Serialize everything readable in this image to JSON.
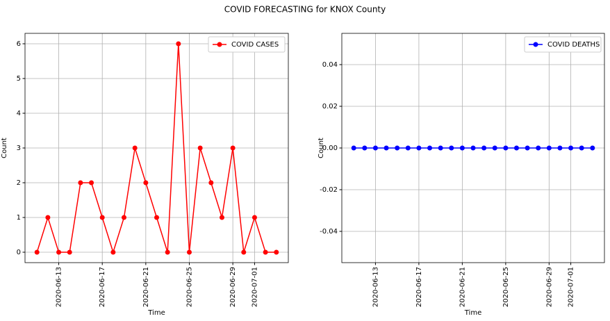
{
  "title": "COVID FORECASTING for KNOX County",
  "chart_data": [
    {
      "type": "line",
      "xlabel": "Time",
      "ylabel": "Count",
      "grid": true,
      "legend": "upper right",
      "x": [
        "2020-06-11",
        "2020-06-12",
        "2020-06-13",
        "2020-06-14",
        "2020-06-15",
        "2020-06-16",
        "2020-06-17",
        "2020-06-18",
        "2020-06-19",
        "2020-06-20",
        "2020-06-21",
        "2020-06-22",
        "2020-06-23",
        "2020-06-24",
        "2020-06-25",
        "2020-06-26",
        "2020-06-27",
        "2020-06-28",
        "2020-06-29",
        "2020-06-30",
        "2020-07-01",
        "2020-07-02",
        "2020-07-03"
      ],
      "series": [
        {
          "name": "COVID CASES",
          "color": "#ff0000",
          "values": [
            0,
            1,
            0,
            0,
            2,
            2,
            1,
            0,
            1,
            3,
            2,
            1,
            0,
            6,
            0,
            3,
            2,
            1,
            3,
            0,
            1,
            0,
            0
          ]
        }
      ],
      "xlim": [
        "2020-06-09T21:36:00Z",
        "2020-07-04T02:24:00Z"
      ],
      "xticks": [
        "2020-06-13",
        "2020-06-17",
        "2020-06-21",
        "2020-06-25",
        "2020-06-29",
        "2020-07-01"
      ],
      "ylim": [
        -0.3,
        6.3
      ],
      "yticks": [
        0,
        1,
        2,
        3,
        4,
        5,
        6
      ]
    },
    {
      "type": "line",
      "xlabel": "Time",
      "ylabel": "Count",
      "grid": true,
      "legend": "upper right",
      "x": [
        "2020-06-11",
        "2020-06-12",
        "2020-06-13",
        "2020-06-14",
        "2020-06-15",
        "2020-06-16",
        "2020-06-17",
        "2020-06-18",
        "2020-06-19",
        "2020-06-20",
        "2020-06-21",
        "2020-06-22",
        "2020-06-23",
        "2020-06-24",
        "2020-06-25",
        "2020-06-26",
        "2020-06-27",
        "2020-06-28",
        "2020-06-29",
        "2020-06-30",
        "2020-07-01",
        "2020-07-02",
        "2020-07-03"
      ],
      "series": [
        {
          "name": "COVID DEATHS",
          "color": "#0000ff",
          "values": [
            0,
            0,
            0,
            0,
            0,
            0,
            0,
            0,
            0,
            0,
            0,
            0,
            0,
            0,
            0,
            0,
            0,
            0,
            0,
            0,
            0,
            0,
            0
          ]
        }
      ],
      "xlim": [
        "2020-06-09T21:36:00Z",
        "2020-07-04T02:24:00Z"
      ],
      "xticks": [
        "2020-06-13",
        "2020-06-17",
        "2020-06-21",
        "2020-06-25",
        "2020-06-29",
        "2020-07-01"
      ],
      "ylim": [
        -0.055,
        0.055
      ],
      "yticks": [
        0.04,
        0.02,
        {
          "value": 0,
          "label": "0.00"
        },
        -0.02,
        -0.04
      ]
    }
  ]
}
